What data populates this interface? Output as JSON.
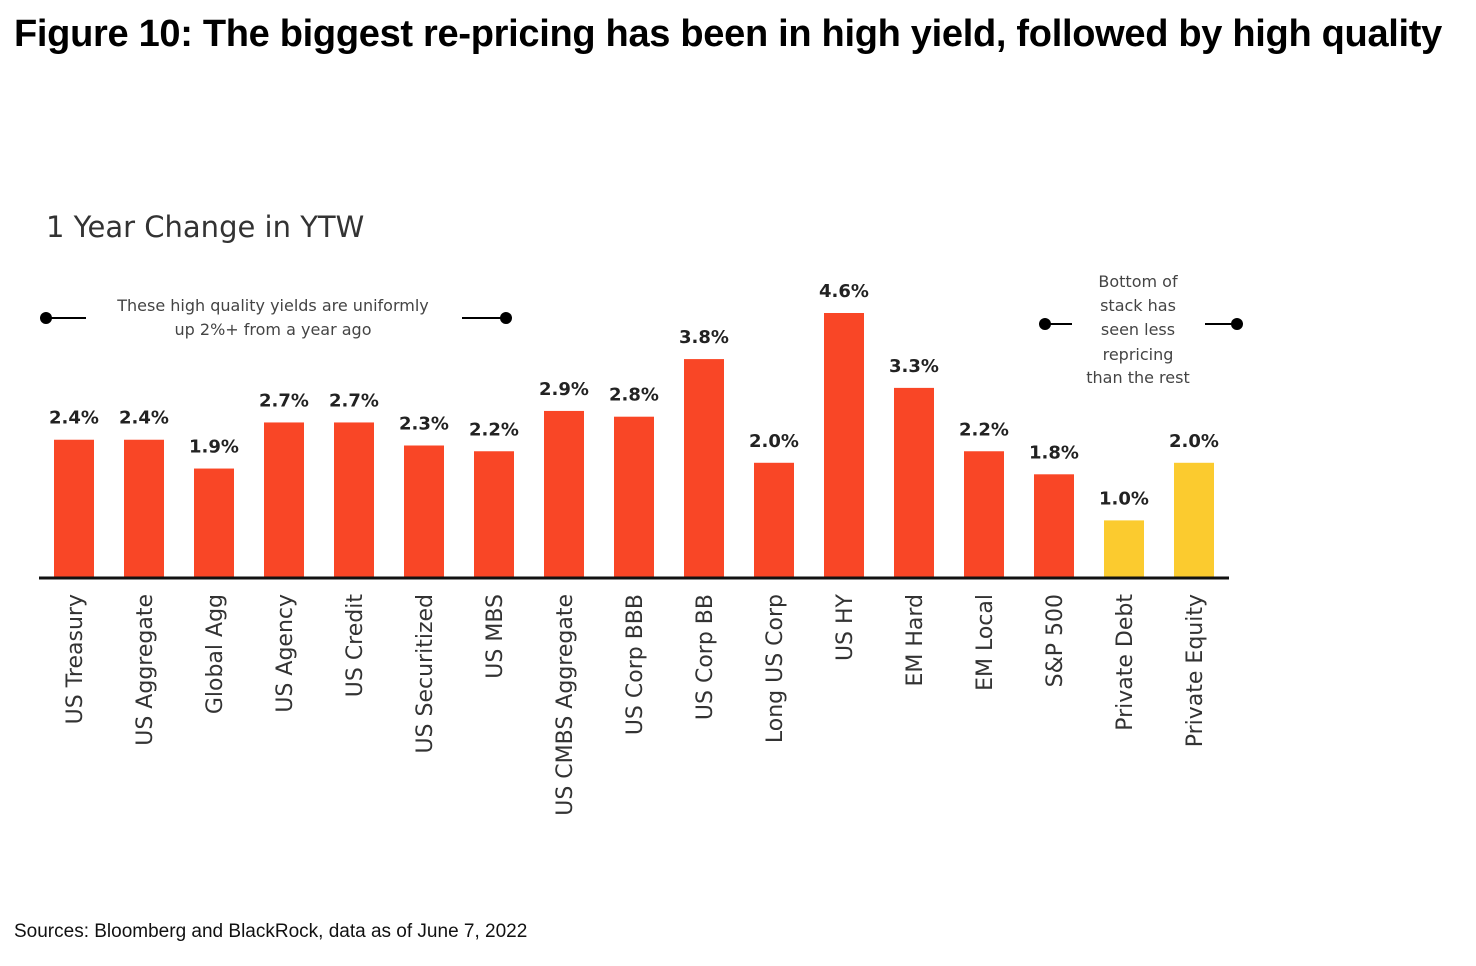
{
  "figure_title": "Figure 10: The biggest re-pricing has been in high yield, followed by high quality",
  "source": "Sources: Bloomberg and BlackRock, data as of June 7, 2022",
  "colors": {
    "primary": "#F94626",
    "secondary": "#FBCB2F",
    "axis": "#111111"
  },
  "chart_data": {
    "type": "bar",
    "title": "1 Year Change in YTW",
    "xlabel": "",
    "ylabel": "",
    "ylim": [
      0,
      4.6
    ],
    "grid": false,
    "categories": [
      "US Treasury",
      "US Aggregate",
      "Global Agg",
      "US Agency",
      "US Credit",
      "US Securitized",
      "US MBS",
      "US CMBS Aggregate",
      "US Corp BBB",
      "US Corp BB",
      "Long US Corp",
      "US HY",
      "EM Hard",
      "EM Local",
      "S&P 500",
      "Private Debt",
      "Private Equity"
    ],
    "values": [
      2.4,
      2.4,
      1.9,
      2.7,
      2.7,
      2.3,
      2.2,
      2.9,
      2.8,
      3.8,
      2.0,
      4.6,
      3.3,
      2.2,
      1.8,
      1.0,
      2.0
    ],
    "data_labels": [
      "2.4%",
      "2.4%",
      "1.9%",
      "2.7%",
      "2.7%",
      "2.3%",
      "2.2%",
      "2.9%",
      "2.8%",
      "3.8%",
      "2.0%",
      "4.6%",
      "3.3%",
      "2.2%",
      "1.8%",
      "1.0%",
      "2.0%"
    ],
    "bar_color_groups": [
      "primary",
      "primary",
      "primary",
      "primary",
      "primary",
      "primary",
      "primary",
      "primary",
      "primary",
      "primary",
      "primary",
      "primary",
      "primary",
      "primary",
      "primary",
      "secondary",
      "secondary"
    ],
    "annotations": [
      {
        "lines": [
          "These high quality yields are uniformly",
          "up 2%+ from a year ago"
        ]
      },
      {
        "lines": [
          "Bottom of",
          "stack has",
          "seen less",
          "repricing",
          "than the rest"
        ]
      }
    ]
  }
}
